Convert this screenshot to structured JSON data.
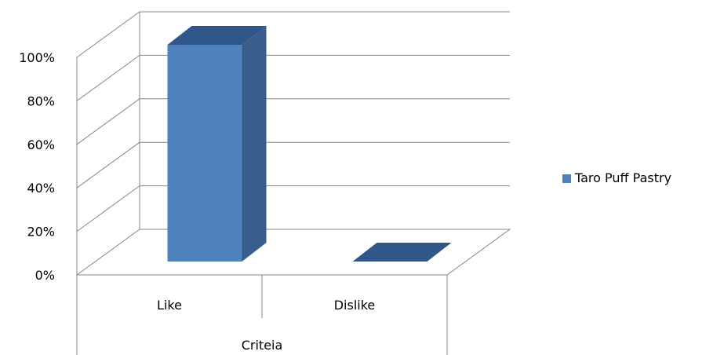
{
  "chart_data": {
    "type": "bar",
    "style": "3d-column",
    "categories": [
      "Like",
      "Dislike"
    ],
    "series": [
      {
        "name": "Taro Puff Pastry",
        "values": [
          100,
          0
        ],
        "color": "#4F81BD"
      }
    ],
    "xlabel": "Criteia",
    "ylim": [
      0,
      100
    ],
    "yticks": [
      "0%",
      "20%",
      "40%",
      "60%",
      "80%",
      "100%"
    ],
    "grid": true,
    "legend": "right"
  }
}
